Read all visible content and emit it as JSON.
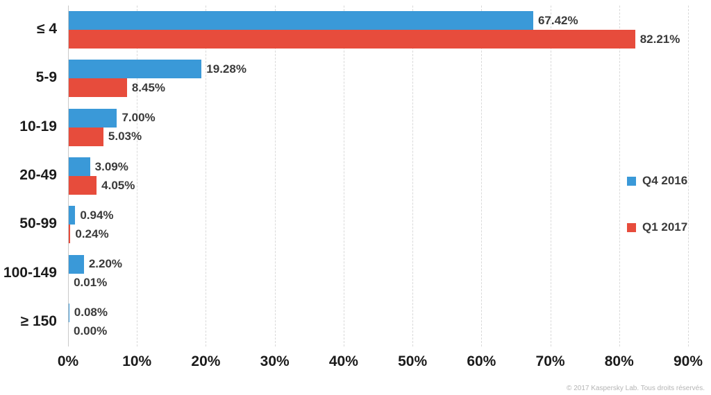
{
  "chart_data": {
    "type": "bar",
    "orientation": "horizontal",
    "title": "",
    "xlabel": "",
    "ylabel": "",
    "xlim": [
      0,
      90
    ],
    "grid": "vertical-dashed",
    "legend_position": "right",
    "categories": [
      "≤ 4",
      "5-9",
      "10-19",
      "20-49",
      "50-99",
      "100-149",
      "≥ 150"
    ],
    "series": [
      {
        "name": "Q4 2016",
        "color": "#3a99d8",
        "values": [
          67.42,
          19.28,
          7.0,
          3.09,
          0.94,
          2.2,
          0.08
        ]
      },
      {
        "name": "Q1 2017",
        "color": "#e74c3c",
        "values": [
          82.21,
          8.45,
          5.03,
          4.05,
          0.24,
          0.01,
          0.0
        ]
      }
    ],
    "value_label_suffix": "%",
    "x_ticks": [
      "0%",
      "10%",
      "20%",
      "30%",
      "40%",
      "50%",
      "60%",
      "70%",
      "80%",
      "90%"
    ]
  },
  "colors": {
    "q4_2016": "#3a99d8",
    "q1_2017": "#e74c3c",
    "grid": "#d9d9d9",
    "axis_line": "#c9c9c9",
    "text_dark": "#1b1b1b",
    "text_value": "#3a3a3a",
    "copyright": "#b4b4b4"
  },
  "footer": {
    "copyright": "© 2017 Kaspersky Lab. Tous droits réservés."
  }
}
